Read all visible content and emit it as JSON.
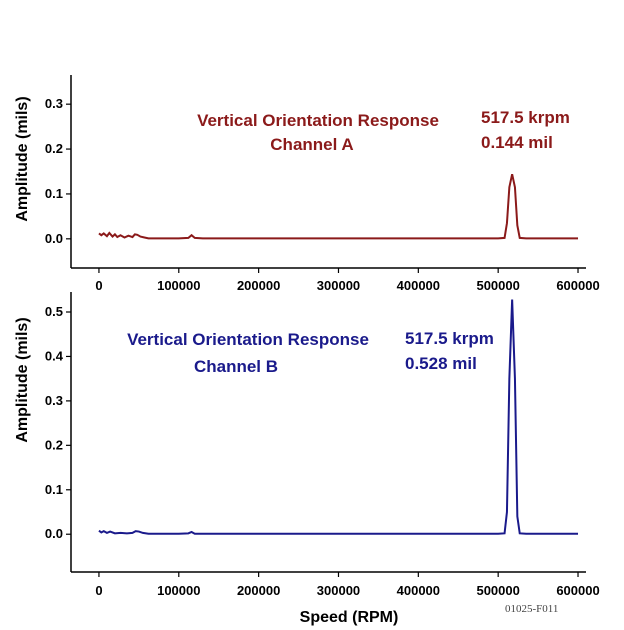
{
  "chart_data": [
    {
      "type": "line",
      "title": "Vertical Orientation Response",
      "subtitle": "Channel A",
      "xlabel": "",
      "ylabel": "Amplitude (mils)",
      "xlim": [
        -35000,
        610000
      ],
      "ylim": [
        -0.065,
        0.365
      ],
      "x_ticks": [
        0,
        100000,
        200000,
        300000,
        400000,
        500000,
        600000
      ],
      "y_ticks": [
        0.0,
        0.1,
        0.2,
        0.3
      ],
      "x_tick_labels": [
        "0",
        "100000",
        "200000",
        "300000",
        "400000",
        "500000",
        "600000"
      ],
      "y_tick_labels": [
        "0.0",
        "0.1",
        "0.2",
        "0.3"
      ],
      "peak_label": [
        "517.5 krpm",
        "0.144 mil"
      ],
      "color": "#8b1a1a",
      "series": [
        {
          "x": [
            0,
            3000,
            6000,
            10000,
            13000,
            17000,
            20000,
            23000,
            27000,
            32000,
            37000,
            42000,
            45000,
            48000,
            52000,
            57000,
            62000,
            70000,
            100000,
            112000,
            116000,
            120000,
            130000,
            300000,
            500000,
            508000,
            511000,
            514000,
            517500,
            521000,
            524000,
            527000,
            535000,
            600000
          ],
          "y": [
            0.012,
            0.008,
            0.012,
            0.006,
            0.013,
            0.005,
            0.01,
            0.004,
            0.008,
            0.003,
            0.007,
            0.004,
            0.01,
            0.009,
            0.005,
            0.003,
            0.001,
            0.001,
            0.001,
            0.002,
            0.008,
            0.002,
            0.001,
            0.001,
            0.001,
            0.002,
            0.035,
            0.115,
            0.144,
            0.115,
            0.03,
            0.002,
            0.001,
            0.001
          ]
        }
      ]
    },
    {
      "type": "line",
      "title": "Vertical Orientation Response",
      "subtitle": "Channel B",
      "xlabel": "Speed (RPM)",
      "ylabel": "Amplitude (mils)",
      "xlim": [
        -35000,
        610000
      ],
      "ylim": [
        -0.085,
        0.545
      ],
      "x_ticks": [
        0,
        100000,
        200000,
        300000,
        400000,
        500000,
        600000
      ],
      "y_ticks": [
        0.0,
        0.1,
        0.2,
        0.3,
        0.4,
        0.5
      ],
      "x_tick_labels": [
        "0",
        "100000",
        "200000",
        "300000",
        "400000",
        "500000",
        "600000"
      ],
      "y_tick_labels": [
        "0.0",
        "0.1",
        "0.2",
        "0.3",
        "0.4",
        "0.5"
      ],
      "peak_label": [
        "517.5 krpm",
        "0.528 mil"
      ],
      "color": "#1a1a8b",
      "series": [
        {
          "x": [
            0,
            3000,
            6000,
            10000,
            14000,
            20000,
            27000,
            35000,
            42000,
            46000,
            50000,
            55000,
            62000,
            70000,
            100000,
            112000,
            116000,
            120000,
            130000,
            300000,
            500000,
            508000,
            511000,
            514000,
            517500,
            521000,
            524000,
            527000,
            535000,
            600000
          ],
          "y": [
            0.008,
            0.004,
            0.007,
            0.003,
            0.006,
            0.002,
            0.003,
            0.002,
            0.003,
            0.007,
            0.006,
            0.003,
            0.001,
            0.001,
            0.001,
            0.002,
            0.005,
            0.001,
            0.001,
            0.001,
            0.001,
            0.002,
            0.05,
            0.35,
            0.528,
            0.35,
            0.04,
            0.002,
            0.001,
            0.001
          ]
        }
      ]
    }
  ],
  "figure_id": "01025-F011"
}
